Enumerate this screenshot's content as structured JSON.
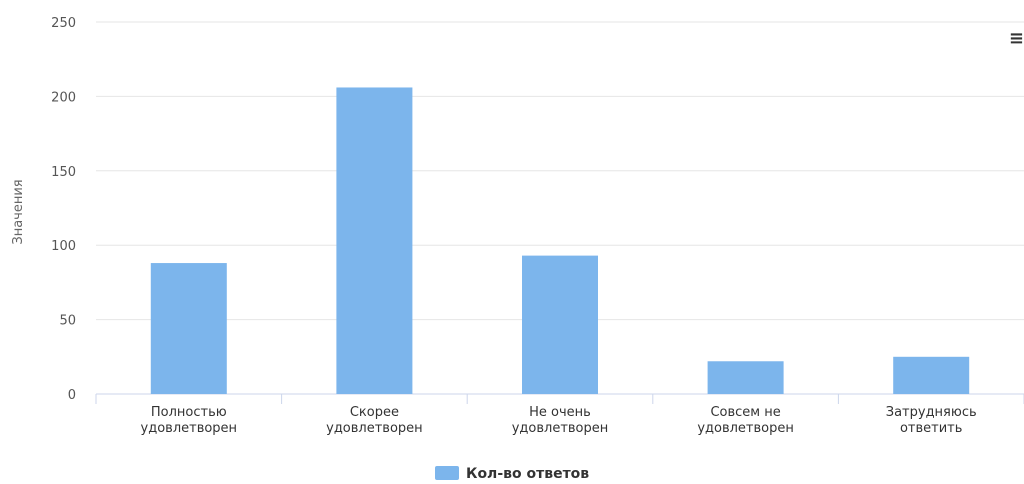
{
  "chart_data": {
    "type": "bar",
    "categories": [
      [
        "Полностью",
        "удовлетворен"
      ],
      [
        "Скорее",
        "удовлетворен"
      ],
      [
        "Не очень",
        "удовлетворен"
      ],
      [
        "Совсем не",
        "удовлетворен"
      ],
      [
        "Затрудняюсь",
        "ответить"
      ]
    ],
    "series": [
      {
        "name": "Кол-во ответов",
        "values": [
          88,
          206,
          93,
          22,
          25
        ]
      }
    ],
    "ylabel": "Значения",
    "ylim": [
      0,
      250
    ],
    "yticks": [
      0,
      50,
      100,
      150,
      200,
      250
    ],
    "grid": true,
    "legend": "bottom-center",
    "colors": {
      "bar": "#7cb5ec",
      "grid": "#e6e6e6",
      "axis": "#ccd6eb"
    }
  },
  "menu_icon": "≡"
}
